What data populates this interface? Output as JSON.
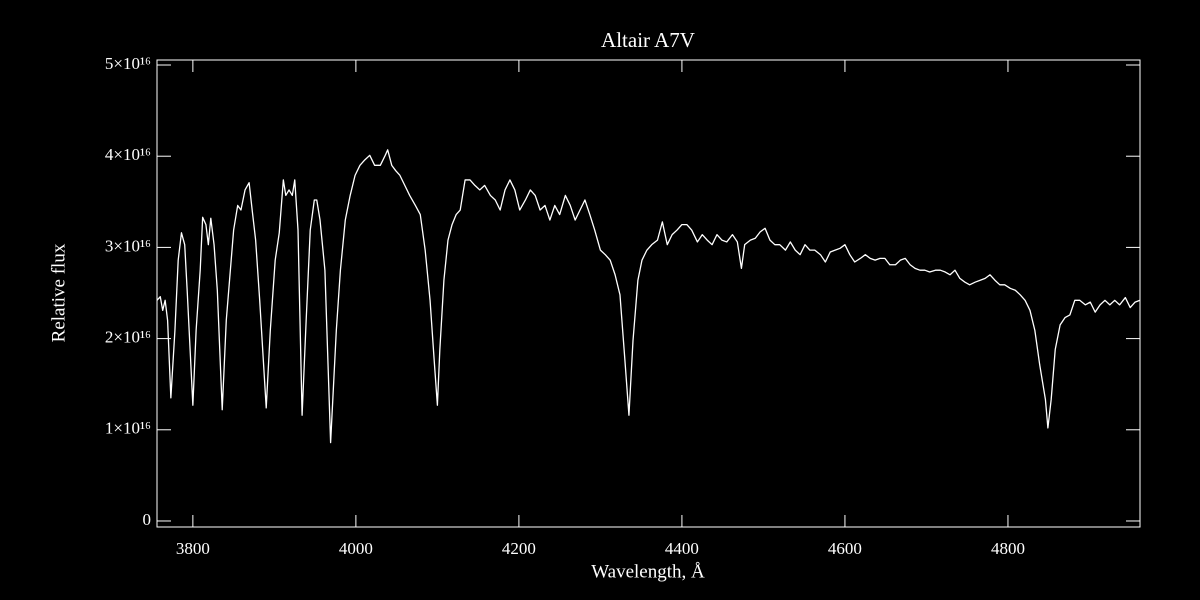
{
  "chart_data": {
    "type": "line",
    "title": "Altair  A7V",
    "xlabel": "Wavelength, Å",
    "ylabel": "Relative flux",
    "color": "#ffffff",
    "xlim": [
      3756,
      4962
    ],
    "xticks": [
      3800,
      4000,
      4200,
      4400,
      4600,
      4800
    ],
    "ylim": [
      -660000000000000.0,
      5.055e+16
    ],
    "yticks": [
      0,
      {
        "value": 1e+16,
        "label": "1×10¹⁶"
      },
      {
        "value": 2e+16,
        "label": "2×10¹⁶"
      },
      {
        "value": 3e+16,
        "label": "3×10¹⁶"
      },
      {
        "value": 4e+16,
        "label": "4×10¹⁶"
      },
      {
        "value": 5e+16,
        "label": "5×10¹⁶"
      }
    ],
    "x": [
      3756,
      3760,
      3763,
      3766,
      3769,
      3773,
      3778,
      3782,
      3786,
      3790,
      3793,
      3800,
      3804,
      3809,
      3812,
      3816,
      3819,
      3822,
      3826,
      3830,
      3836,
      3841,
      3846,
      3850,
      3855,
      3859,
      3864,
      3869,
      3873,
      3877,
      3882,
      3890,
      3895,
      3901,
      3906,
      3911,
      3914,
      3918,
      3922,
      3925,
      3929,
      3934,
      3939,
      3944,
      3949,
      3952,
      3956,
      3962,
      3969,
      3976,
      3981,
      3987,
      3993,
      3999,
      4005,
      4011,
      4017,
      4023,
      4030,
      4036,
      4039,
      4044,
      4049,
      4054,
      4060,
      4066,
      4073,
      4079,
      4085,
      4091,
      4096,
      4100,
      4103,
      4108,
      4113,
      4118,
      4123,
      4128,
      4134,
      4140,
      4146,
      4152,
      4158,
      4165,
      4171,
      4177,
      4183,
      4189,
      4195,
      4201,
      4208,
      4214,
      4220,
      4226,
      4232,
      4238,
      4244,
      4250,
      4257,
      4263,
      4269,
      4275,
      4281,
      4287,
      4293,
      4300,
      4306,
      4312,
      4318,
      4324,
      4330,
      4335,
      4340,
      4346,
      4351,
      4357,
      4363,
      4370,
      4376,
      4382,
      4388,
      4394,
      4400,
      4406,
      4412,
      4419,
      4425,
      4431,
      4437,
      4443,
      4449,
      4455,
      4462,
      4468,
      4473,
      4477,
      4484,
      4490,
      4496,
      4502,
      4508,
      4514,
      4520,
      4527,
      4533,
      4539,
      4545,
      4551,
      4557,
      4563,
      4570,
      4576,
      4582,
      4588,
      4594,
      4600,
      4606,
      4612,
      4619,
      4625,
      4631,
      4637,
      4643,
      4649,
      4655,
      4662,
      4668,
      4674,
      4680,
      4686,
      4692,
      4698,
      4704,
      4711,
      4717,
      4723,
      4729,
      4735,
      4741,
      4747,
      4753,
      4760,
      4766,
      4772,
      4778,
      4784,
      4790,
      4796,
      4803,
      4809,
      4815,
      4821,
      4827,
      4833,
      4839,
      4846,
      4849,
      4853,
      4858,
      4864,
      4870,
      4876,
      4882,
      4888,
      4895,
      4901,
      4907,
      4913,
      4919,
      4925,
      4931,
      4937,
      4944,
      4950,
      4956,
      4962
    ],
    "values": [
      2.42e+16,
      2.46e+16,
      2.31e+16,
      2.42e+16,
      2.2e+16,
      1.35e+16,
      2.09e+16,
      2.86e+16,
      3.16e+16,
      3.03e+16,
      2.53e+16,
      1.27e+16,
      2.09e+16,
      2.75e+16,
      3.33e+16,
      3.25e+16,
      3.03e+16,
      3.32e+16,
      3.03e+16,
      2.53e+16,
      1.22e+16,
      2.2e+16,
      2.75e+16,
      3.19e+16,
      3.46e+16,
      3.41e+16,
      3.63e+16,
      3.71e+16,
      3.39e+16,
      3.08e+16,
      2.42e+16,
      1.24e+16,
      2.09e+16,
      2.86e+16,
      3.16e+16,
      3.74e+16,
      3.57e+16,
      3.63e+16,
      3.57e+16,
      3.74e+16,
      3.19e+16,
      1.16e+16,
      2.2e+16,
      3.19e+16,
      3.52e+16,
      3.52e+16,
      3.3e+16,
      2.75e+16,
      8600000000000000.0,
      2.09e+16,
      2.75e+16,
      3.3e+16,
      3.57e+16,
      3.79e+16,
      3.9e+16,
      3.96e+16,
      4.01e+16,
      3.9e+16,
      3.9e+16,
      4.01e+16,
      4.07e+16,
      3.9e+16,
      3.84e+16,
      3.79e+16,
      3.68e+16,
      3.57e+16,
      3.46e+16,
      3.36e+16,
      2.97e+16,
      2.42e+16,
      1.77e+16,
      1.27e+16,
      1.88e+16,
      2.64e+16,
      3.08e+16,
      3.25e+16,
      3.36e+16,
      3.41e+16,
      3.74e+16,
      3.74e+16,
      3.68e+16,
      3.63e+16,
      3.68e+16,
      3.57e+16,
      3.52e+16,
      3.41e+16,
      3.63e+16,
      3.74e+16,
      3.63e+16,
      3.41e+16,
      3.52e+16,
      3.63e+16,
      3.57e+16,
      3.41e+16,
      3.46e+16,
      3.3e+16,
      3.46e+16,
      3.36e+16,
      3.57e+16,
      3.46e+16,
      3.3e+16,
      3.41e+16,
      3.52e+16,
      3.36e+16,
      3.19e+16,
      2.97e+16,
      2.92e+16,
      2.86e+16,
      2.7e+16,
      2.48e+16,
      1.77e+16,
      1.16e+16,
      1.98e+16,
      2.64e+16,
      2.86e+16,
      2.97e+16,
      3.03e+16,
      3.08e+16,
      3.28e+16,
      3.03e+16,
      3.14e+16,
      3.19e+16,
      3.25e+16,
      3.25e+16,
      3.19e+16,
      3.06e+16,
      3.14e+16,
      3.08e+16,
      3.03e+16,
      3.14e+16,
      3.08e+16,
      3.06e+16,
      3.14e+16,
      3.06e+16,
      2.77e+16,
      3.03e+16,
      3.08e+16,
      3.1e+16,
      3.17e+16,
      3.21e+16,
      3.08e+16,
      3.03e+16,
      3.03e+16,
      2.97e+16,
      3.06e+16,
      2.97e+16,
      2.92e+16,
      3.03e+16,
      2.97e+16,
      2.97e+16,
      2.92e+16,
      2.84e+16,
      2.95e+16,
      2.97e+16,
      2.99e+16,
      3.03e+16,
      2.92e+16,
      2.84e+16,
      2.88e+16,
      2.92e+16,
      2.88e+16,
      2.86e+16,
      2.88e+16,
      2.88e+16,
      2.81e+16,
      2.81e+16,
      2.86e+16,
      2.88e+16,
      2.81e+16,
      2.77e+16,
      2.75e+16,
      2.75e+16,
      2.73e+16,
      2.75e+16,
      2.75e+16,
      2.73e+16,
      2.7e+16,
      2.75e+16,
      2.66e+16,
      2.62e+16,
      2.59e+16,
      2.62e+16,
      2.64e+16,
      2.66e+16,
      2.7e+16,
      2.64e+16,
      2.59e+16,
      2.59e+16,
      2.55e+16,
      2.53e+16,
      2.48e+16,
      2.42e+16,
      2.31e+16,
      2.09e+16,
      1.71e+16,
      1.33e+16,
      1.02e+16,
      1.33e+16,
      1.88e+16,
      2.15e+16,
      2.23e+16,
      2.26e+16,
      2.42e+16,
      2.42e+16,
      2.37e+16,
      2.4e+16,
      2.29e+16,
      2.37e+16,
      2.42e+16,
      2.37e+16,
      2.42e+16,
      2.37e+16,
      2.45e+16,
      2.34e+16,
      2.4e+16,
      2.42e+16
    ]
  }
}
